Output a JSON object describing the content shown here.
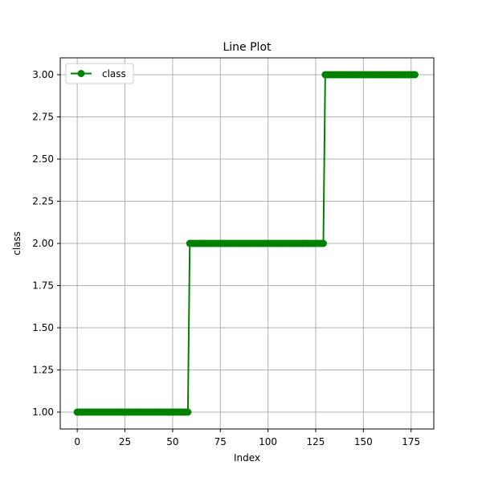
{
  "chart_data": {
    "type": "line",
    "title": "Line Plot",
    "xlabel": "Index",
    "ylabel": "class",
    "xlim": [
      -8.9,
      186.9
    ],
    "ylim": [
      0.9,
      3.1
    ],
    "x_ticks": [
      0,
      25,
      50,
      75,
      100,
      125,
      150,
      175
    ],
    "y_ticks": [
      1.0,
      1.25,
      1.5,
      1.75,
      2.0,
      2.25,
      2.5,
      2.75,
      3.0
    ],
    "x_tick_labels": [
      "0",
      "25",
      "50",
      "75",
      "100",
      "125",
      "150",
      "175"
    ],
    "y_tick_labels": [
      "1.00",
      "1.25",
      "1.50",
      "1.75",
      "2.00",
      "2.25",
      "2.50",
      "2.75",
      "3.00"
    ],
    "grid": true,
    "legend_position": "top-left",
    "series": [
      {
        "name": "class",
        "color": "#008000",
        "marker": "circle",
        "segments": [
          {
            "x_start": 0,
            "x_end": 58,
            "y": 1
          },
          {
            "x_start": 59,
            "x_end": 129,
            "y": 2
          },
          {
            "x_start": 130,
            "x_end": 177,
            "y": 3
          }
        ]
      }
    ]
  }
}
